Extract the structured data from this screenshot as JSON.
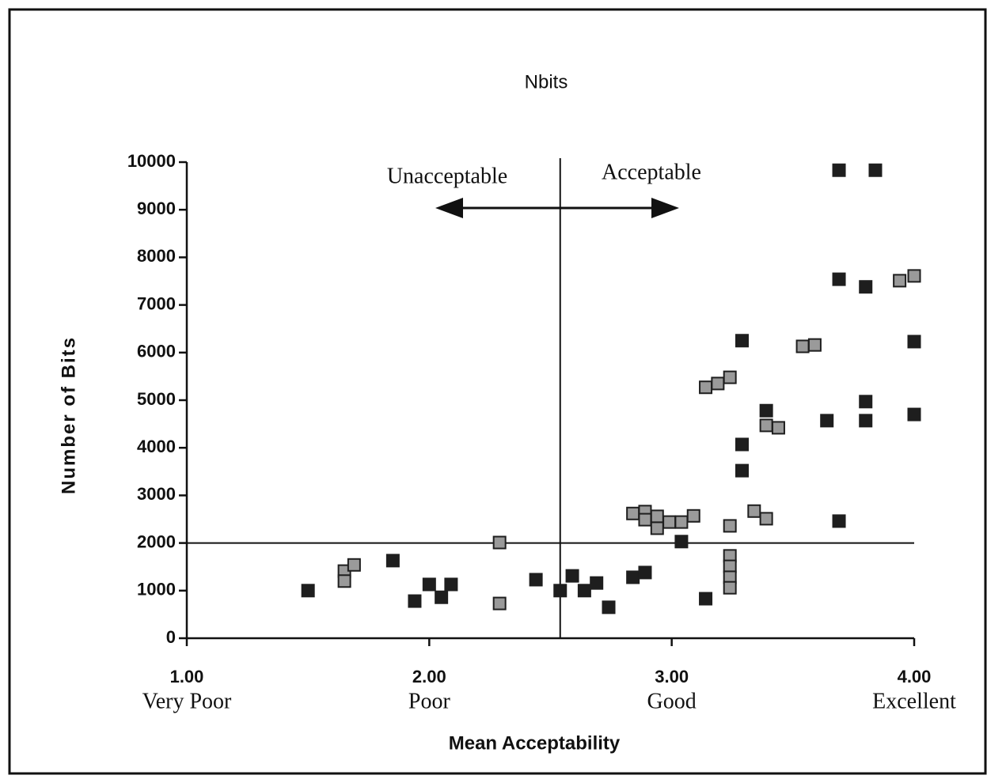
{
  "chart_data": {
    "type": "scatter",
    "title": "Nbits",
    "x_label": "Mean Acceptability",
    "y_label": "Number of Bits",
    "xlim": [
      1,
      4
    ],
    "ylim": [
      0,
      10000
    ],
    "xticks": [
      {
        "value": 1,
        "label": "1.00"
      },
      {
        "value": 2,
        "label": "2.00"
      },
      {
        "value": 3,
        "label": "3.00"
      },
      {
        "value": 4,
        "label": "4.00"
      }
    ],
    "xtick_names": [
      "Very Poor",
      "Poor",
      "Good",
      "Excellent"
    ],
    "yticks": [
      0,
      1000,
      2000,
      3000,
      4000,
      5000,
      6000,
      7000,
      8000,
      9000,
      10000
    ],
    "threshold_x": 2.54,
    "threshold_y": 2000,
    "annotations": [
      "Unacceptable",
      "Acceptable"
    ],
    "series": [
      {
        "color": "#1e1e1e",
        "x": [
          1.5,
          1.85,
          1.94,
          2.0,
          2.05,
          2.09,
          2.44,
          2.54,
          2.59,
          2.64,
          2.69,
          2.74,
          2.84,
          2.89,
          3.04,
          3.14,
          3.29,
          3.29,
          3.29,
          3.39,
          3.64,
          3.69,
          3.69,
          3.69,
          3.8,
          3.84,
          3.8,
          3.8,
          4.0,
          4.0
        ],
        "values": [
          1000,
          1630,
          780,
          1130,
          860,
          1130,
          1230,
          1000,
          1310,
          1000,
          1160,
          650,
          1280,
          1380,
          2030,
          830,
          6250,
          4070,
          3520,
          4780,
          4570,
          2460,
          7540,
          9830,
          7380,
          9830,
          4970,
          4570,
          6230,
          4700
        ]
      },
      {
        "color": "#9a9a9a",
        "x": [
          1.65,
          1.65,
          1.69,
          2.29,
          2.29,
          2.84,
          2.89,
          2.89,
          2.94,
          2.94,
          2.99,
          3.04,
          3.09,
          3.14,
          3.19,
          3.24,
          3.24,
          3.24,
          3.24,
          3.24,
          3.24,
          3.34,
          3.39,
          3.39,
          3.44,
          3.54,
          3.59,
          3.94,
          4.0
        ],
        "values": [
          1410,
          1200,
          1540,
          2010,
          730,
          2620,
          2660,
          2490,
          2560,
          2310,
          2440,
          2440,
          2570,
          5270,
          5350,
          5480,
          2360,
          1730,
          1510,
          1280,
          1060,
          2670,
          4470,
          2510,
          4420,
          6130,
          6160,
          7510,
          7610
        ]
      }
    ]
  }
}
